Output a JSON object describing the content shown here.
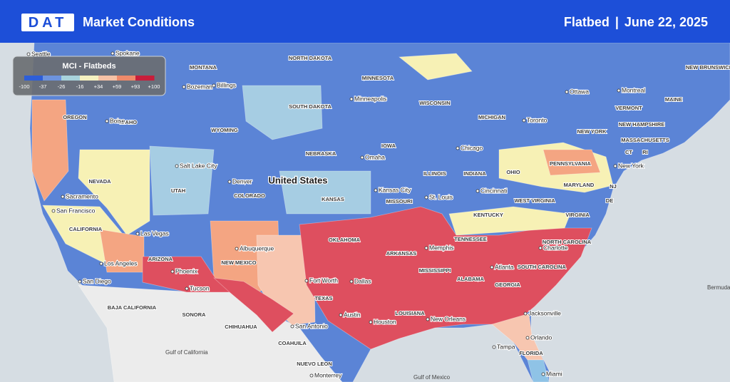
{
  "header": {
    "logo": "DAT",
    "title": "Market Conditions",
    "equipment": "Flatbed",
    "separator": "|",
    "date": "June 22, 2025"
  },
  "legend": {
    "title": "MCI - Flatbeds",
    "labels": [
      "-100",
      "-37",
      "-26",
      "-16",
      "+34",
      "+59",
      "+93",
      "+100"
    ],
    "colors": [
      "#2d5ed8",
      "#6d93de",
      "#a8d3dc",
      "#f5f1c0",
      "#f6c2a6",
      "#ef8a6a",
      "#c81d3a"
    ]
  },
  "map": {
    "country": "United States",
    "states": [
      "MONTANA",
      "NORTH DAKOTA",
      "MINNESOTA",
      "WISCONSIN",
      "MICHIGAN",
      "MAINE",
      "NEW BRUNSWICK",
      "OREGON",
      "IDAHO",
      "WYOMING",
      "SOUTH DAKOTA",
      "NEW YORK",
      "VERMONT",
      "NEW HAMPSHIRE",
      "MASSACHUSETTS",
      "CT",
      "RI",
      "NEVADA",
      "UTAH",
      "NEBRASKA",
      "IOWA",
      "ILLINOIS",
      "INDIANA",
      "OHIO",
      "PENNSYLVANIA",
      "NJ",
      "MARYLAND",
      "DE",
      "COLORADO",
      "KANSAS",
      "MISSOURI",
      "WEST VIRGINIA",
      "KENTUCKY",
      "VIRGINIA",
      "CALIFORNIA",
      "OKLAHOMA",
      "ARKANSAS",
      "TENNESSEE",
      "NORTH CAROLINA",
      "ARIZONA",
      "NEW MEXICO",
      "SOUTH CAROLINA",
      "MISSISSIPPI",
      "ALABAMA",
      "GEORGIA",
      "TEXAS",
      "BAJA CALIFORNIA",
      "SONORA",
      "CHIHUAHUA",
      "LOUISIANA",
      "COAHUILA",
      "FLORIDA",
      "NUEVO LEON"
    ],
    "cities": [
      "Seattle",
      "Spokane",
      "Bozeman",
      "Billings",
      "Minneapolis",
      "Ottawa",
      "Montreal",
      "Boise",
      "Toronto",
      "New York",
      "Salt Lake City",
      "Omaha",
      "Chicago",
      "Sacramento",
      "San Francisco",
      "Denver",
      "Kansas City",
      "St. Louis",
      "Cincinnati",
      "Las Vegas",
      "Memphis",
      "Charlotte",
      "Los Angeles",
      "Phoenix",
      "Albuquerque",
      "Atlanta",
      "Fort Worth",
      "Dallas",
      "San Diego",
      "Tucson",
      "Austin",
      "Houston",
      "New Orleans",
      "Jacksonville",
      "San Antonio",
      "Orlando",
      "Tampa",
      "Monterrey",
      "Miami"
    ],
    "other": [
      "Bermuda",
      "Gulf of California",
      "Gulf of Mexico"
    ]
  }
}
